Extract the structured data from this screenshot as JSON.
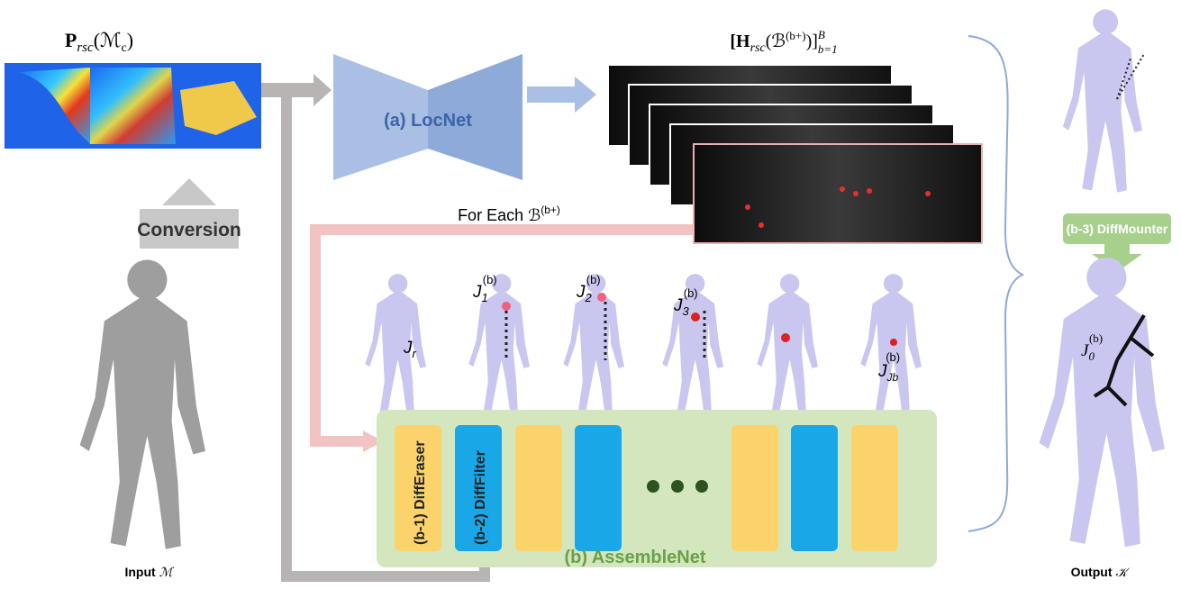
{
  "heatmap_title": {
    "base": "P",
    "sub": "rsc",
    "rest": "(ℳ",
    "rest_sub": "c",
    "end": ")"
  },
  "conversion": "Conversion",
  "input_label": {
    "text": "Input",
    "symbol": "ℳ"
  },
  "locnet": "(a) LocNet",
  "stack_title": {
    "open": "[H",
    "sub": "rsc",
    "mid": "(ℬ",
    "sup": "(b+)",
    "close": ")]",
    "sup2": "B",
    "sub2": "b=1"
  },
  "for_each": {
    "text": "For Each ℬ",
    "sup": "(b+)"
  },
  "joints": [
    {
      "base": "J",
      "sub": "r"
    },
    {
      "base": "J",
      "sub": "1",
      "sup": "(b)"
    },
    {
      "base": "J",
      "sub": "2",
      "sup": "(b)"
    },
    {
      "base": "J",
      "sub": "3",
      "sup": "(b)"
    },
    {
      "base": "J",
      "sub": "Jb",
      "sup": "(b)"
    },
    {
      "base": "J",
      "sub": "0",
      "sup": "(b)"
    }
  ],
  "blocks": [
    "(b-1) DiffEraser",
    "(b-2) DiffFilter"
  ],
  "assemblenet": "(b) AssembleNet",
  "diffmounter": "(b-3) DiffMounter",
  "output_label": {
    "text": "Output",
    "symbol": "𝒦"
  }
}
